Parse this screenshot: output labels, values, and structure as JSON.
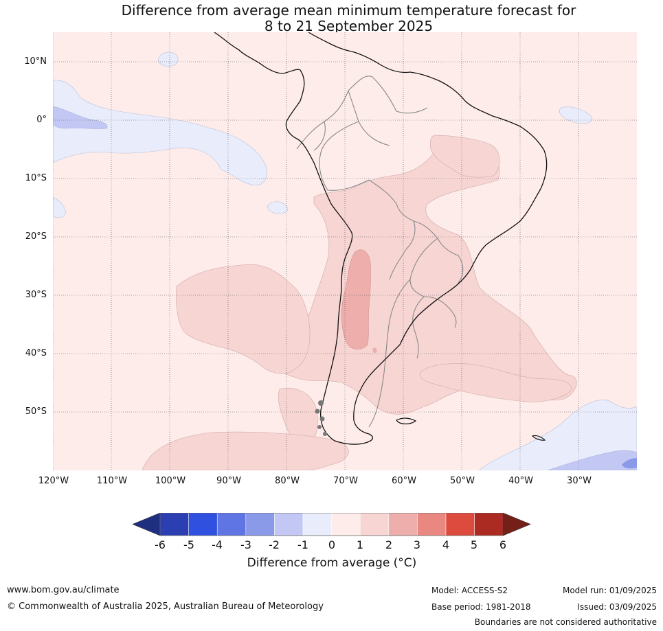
{
  "title": {
    "line1": "Difference from average mean minimum temperature forecast for",
    "line2": "8 to 21 September 2025"
  },
  "map": {
    "region": "South America",
    "latitude_labels": [
      "10°N",
      "0°",
      "10°S",
      "20°S",
      "30°S",
      "40°S",
      "50°S"
    ],
    "longitude_labels": [
      "120°W",
      "110°W",
      "100°W",
      "90°W",
      "80°W",
      "70°W",
      "60°W",
      "50°W",
      "40°W",
      "30°W"
    ],
    "latitude_values": [
      10,
      0,
      -10,
      -20,
      -30,
      -40,
      -50
    ],
    "longitude_values": [
      -120,
      -110,
      -100,
      -90,
      -80,
      -70,
      -60,
      -50,
      -40,
      -30
    ],
    "extent": {
      "lon_min": -120,
      "lon_max": -20,
      "lat_min": -60,
      "lat_max": 15
    },
    "gridlines": true,
    "background_anomaly_bin": "0 to 1"
  },
  "colorbar": {
    "ticks": [
      "-6",
      "-5",
      "-4",
      "-3",
      "-2",
      "-1",
      "0",
      "1",
      "2",
      "3",
      "4",
      "5",
      "6"
    ],
    "colors": [
      "#1f2f7f",
      "#2b3fb3",
      "#3050e0",
      "#5f75e3",
      "#8a9ae8",
      "#c2c8f3",
      "#e9ecfb",
      "#fdecea",
      "#f6d5d3",
      "#edaeac",
      "#e88880",
      "#dd4b3e",
      "#ab2b22",
      "#742018"
    ],
    "label": "Difference from average (°C)"
  },
  "footer": {
    "website": "www.bom.gov.au/climate",
    "copyright": "© Commonwealth of Australia 2025, Australian Bureau of Meteorology",
    "model": "Model: ACCESS-S2",
    "base_period": "Base period: 1981-2018",
    "model_run": "Model run: 01/09/2025",
    "issued": "Issued: 03/09/2025",
    "disclaimer": "Boundaries are not considered authoritative"
  }
}
